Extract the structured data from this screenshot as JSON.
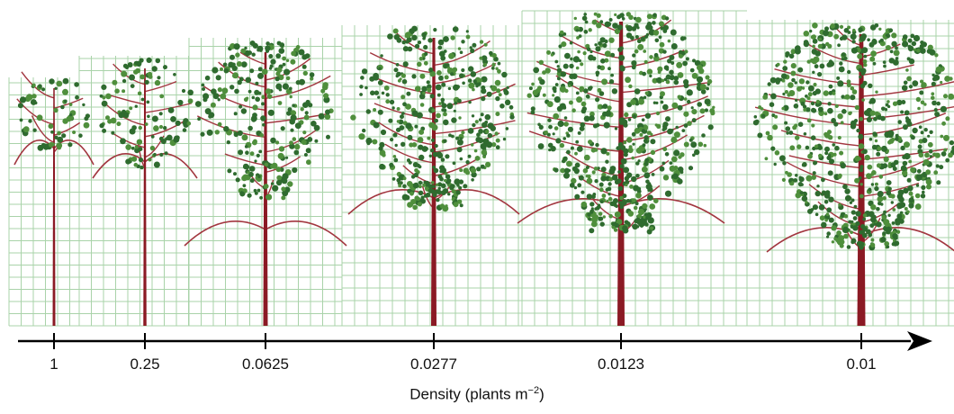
{
  "figure": {
    "axis_title_prefix": "Density (plants m",
    "axis_title_exponent": "−2",
    "axis_title_suffix": ")",
    "colors": {
      "grid": "#a9d3a9",
      "trunk": "#8b1a24",
      "branch": "#a2363f",
      "foliage": "#2f6b2f",
      "foliage_light": "#4f8f3c",
      "axis": "#000000"
    },
    "densities": [
      {
        "label": "1"
      },
      {
        "label": "0.25"
      },
      {
        "label": "0.0625"
      },
      {
        "label": "0.0277"
      },
      {
        "label": "0.0123"
      },
      {
        "label": "0.01"
      }
    ]
  }
}
